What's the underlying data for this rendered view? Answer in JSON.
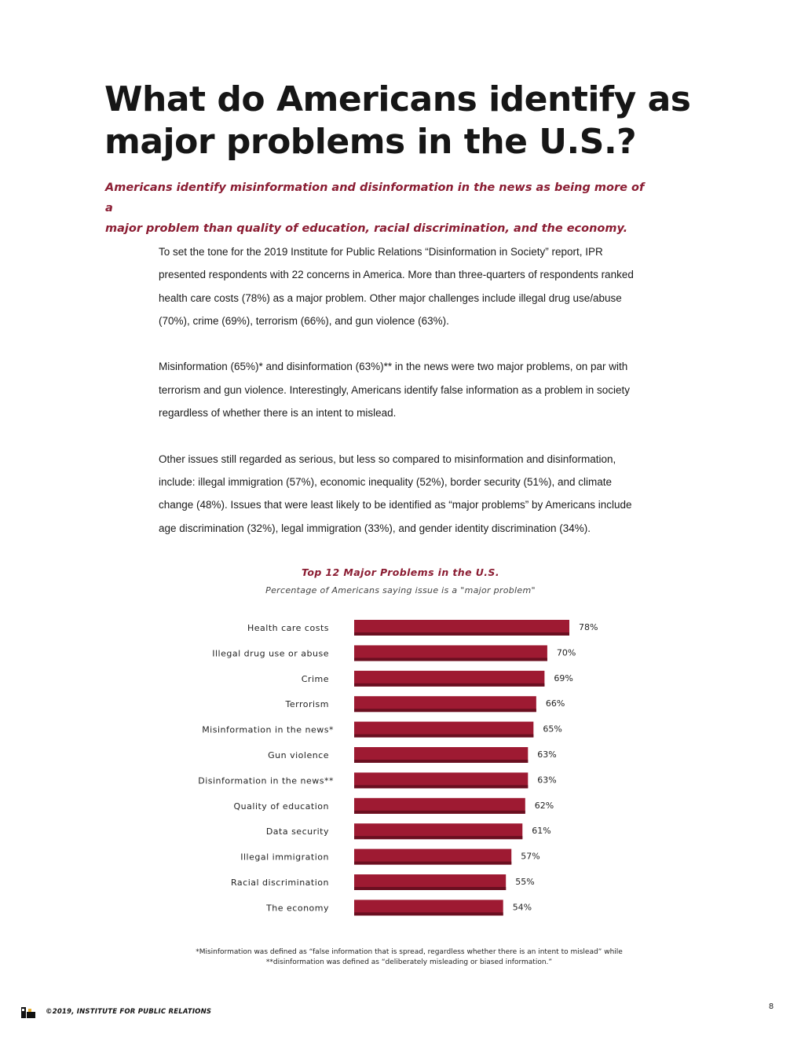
{
  "heading": {
    "title_line1": "What do Americans identify as",
    "title_line2": "major problems in the U.S.?",
    "subtitle_line1": "Americans identify misinformation and disinformation in the news as being more of a",
    "subtitle_line2": "major problem than quality of education, racial discrimination, and the economy."
  },
  "body": {
    "paragraph1": "To set the tone for the 2019 Institute for Public Relations “Disinformation in Society” report, IPR presented respondents with 22 concerns in America. More than three-quarters of respondents ranked health care costs (78%) as a major problem. Other major challenges include illegal drug use/abuse (70%), crime (69%), terrorism (66%), and gun violence (63%).",
    "paragraph2": "Misinformation (65%)* and disinformation (63%)** in the news were two major problems, on par with terrorism and gun violence. Interestingly, Americans identify false information as a problem in society regardless of whether there is an intent to mislead.",
    "paragraph3": "Other issues still regarded as serious, but less so compared to misinformation and disinformation, include: illegal immigration (57%), economic inequality (52%), border security (51%), and climate change (48%). Issues that were least likely to be identified as “major problems” by Americans include age discrimination (32%), legal immigration (33%), and gender identity discrimination (34%)."
  },
  "chart_data": {
    "type": "bar",
    "orientation": "horizontal",
    "title": "Top 12 Major Problems in the U.S.",
    "subtitle": "Percentage of Americans saying issue is a \"major problem\"",
    "categories": [
      "Health care costs",
      "Illegal drug use or abuse",
      "Crime",
      "Terrorism",
      "Misinformation in the news*",
      "Gun violence",
      "Disinformation in the news**",
      "Quality of education",
      "Data security",
      "Illegal immigration",
      "Racial discrimination",
      "The economy"
    ],
    "values": [
      78,
      70,
      69,
      66,
      65,
      63,
      63,
      62,
      61,
      57,
      55,
      54
    ],
    "value_labels": [
      "78%",
      "70%",
      "69%",
      "66%",
      "65%",
      "63%",
      "63%",
      "62%",
      "61%",
      "57%",
      "55%",
      "54%"
    ],
    "unit": "%",
    "xlim": [
      0,
      100
    ],
    "bar_color": "#9e1a32",
    "bar_shadow_color": "#6a0f20"
  },
  "footnote": {
    "line1": "*Misinformation was defined as “false information that is spread, regardless whether there is an intent to mislead” while",
    "line2": "**disinformation was defined as “deliberately misleading or biased information.”"
  },
  "footer": {
    "copyright": "©2019, INSTITUTE FOR PUBLIC RELATIONS",
    "page_number": "8",
    "logo_icon": "ipr-logo-icon"
  }
}
